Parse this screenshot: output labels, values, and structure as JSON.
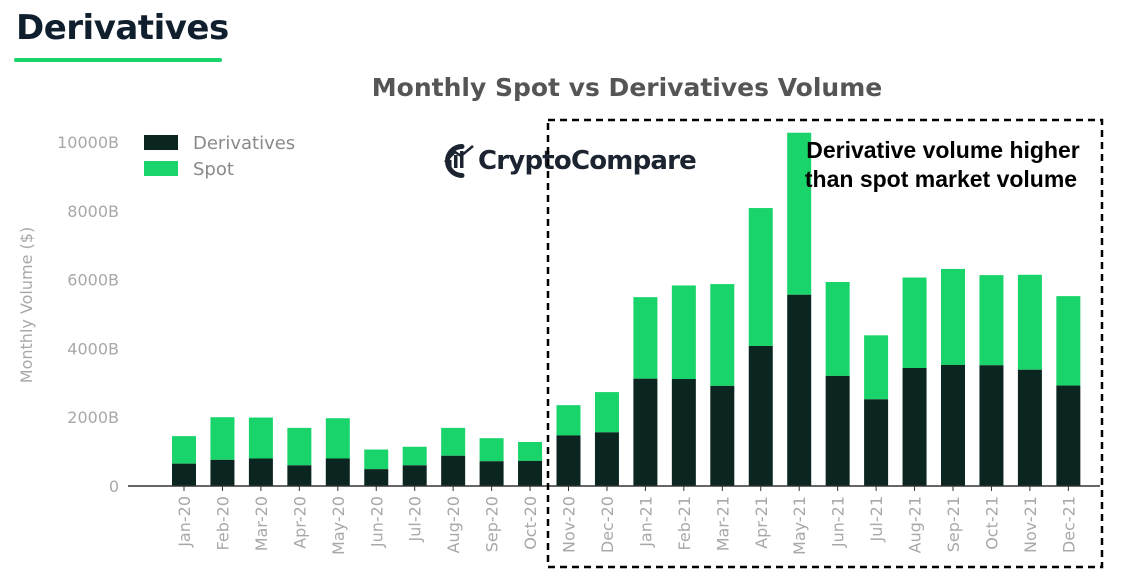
{
  "page": {
    "heading": "Derivatives"
  },
  "colors": {
    "derivatives": "#0b2620",
    "spot": "#19d46a",
    "heading_underline": "#19d46a",
    "axis": "#333333",
    "tick_text": "#a8a8a8"
  },
  "brand": {
    "name": "CryptoCompare",
    "icon": "cryptocompare-logo-icon"
  },
  "annotation": {
    "lines": [
      "Derivative volume higher",
      "than spot market volume"
    ],
    "highlight_from": "Nov-20",
    "highlight_to": "Dec-21"
  },
  "chart_data": {
    "type": "bar",
    "stacked": true,
    "title": "Monthly Spot vs Derivatives Volume",
    "xlabel": "",
    "ylabel": "Monthly Volume ($)",
    "ylim": [
      0,
      10000
    ],
    "yticks": [
      0,
      2000,
      4000,
      6000,
      8000,
      10000
    ],
    "ytick_labels": [
      "0",
      "2000B",
      "4000B",
      "6000B",
      "8000B",
      "10000B"
    ],
    "legend_position": "top-left",
    "grid": false,
    "categories": [
      "Jan-20",
      "Feb-20",
      "Mar-20",
      "Apr-20",
      "May-20",
      "Jun-20",
      "Jul-20",
      "Aug-20",
      "Sep-20",
      "Oct-20",
      "Nov-20",
      "Dec-20",
      "Jan-21",
      "Feb-21",
      "Mar-21",
      "Apr-21",
      "May-21",
      "Jun-21",
      "Jul-21",
      "Aug-21",
      "Sep-21",
      "Oct-21",
      "Nov-21",
      "Dec-21"
    ],
    "series": [
      {
        "name": "Derivatives",
        "color": "#0b2620",
        "values": [
          650,
          760,
          800,
          600,
          800,
          490,
          600,
          880,
          720,
          730,
          1470,
          1560,
          3120,
          3110,
          2910,
          4070,
          5560,
          3200,
          2520,
          3430,
          3520,
          3510,
          3380,
          2920
        ]
      },
      {
        "name": "Spot",
        "color": "#19d46a",
        "values": [
          800,
          1240,
          1190,
          1090,
          1170,
          570,
          540,
          810,
          670,
          550,
          880,
          1170,
          2370,
          2720,
          2960,
          4010,
          4710,
          2730,
          1860,
          2630,
          2790,
          2620,
          2760,
          2600
        ]
      }
    ]
  }
}
